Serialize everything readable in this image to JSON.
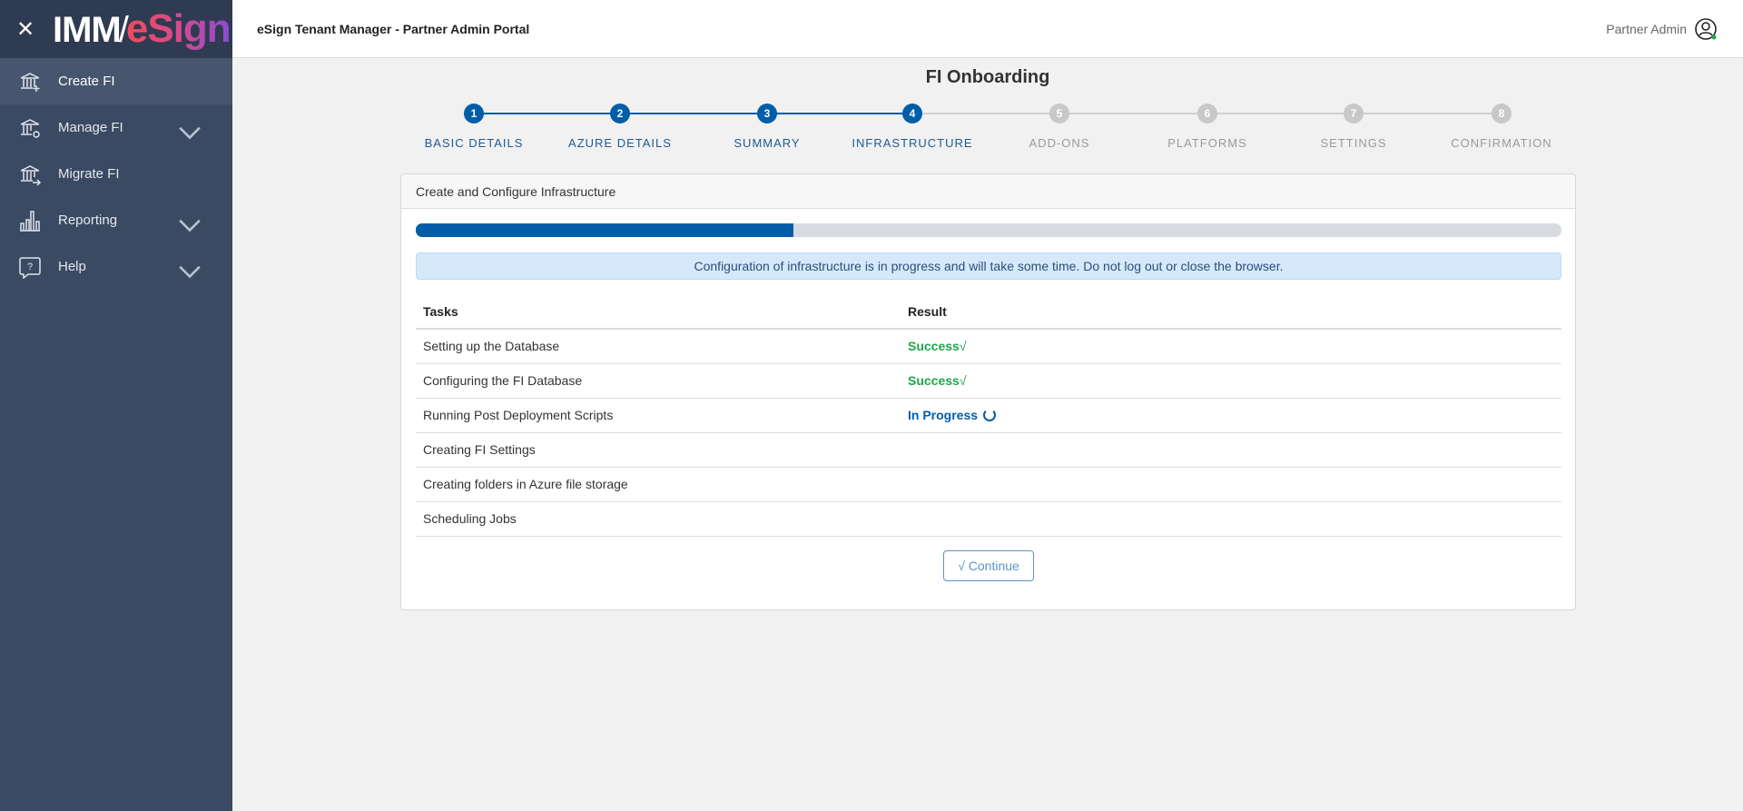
{
  "brand": {
    "close_icon": "close-icon",
    "logo_text": "IMM/eSign"
  },
  "sidebar": {
    "items": [
      {
        "label": "Create FI",
        "icon": "bank-plus-icon",
        "active": true,
        "expandable": false
      },
      {
        "label": "Manage FI",
        "icon": "bank-gear-icon",
        "expandable": true
      },
      {
        "label": "Migrate FI",
        "icon": "bank-arrow-icon",
        "expandable": false
      },
      {
        "label": "Reporting",
        "icon": "bar-chart-icon",
        "expandable": true
      },
      {
        "label": "Help",
        "icon": "help-bubble-icon",
        "expandable": true
      }
    ]
  },
  "header": {
    "title": "eSign Tenant Manager - Partner Admin Portal",
    "user": "Partner Admin"
  },
  "page": {
    "title": "FI Onboarding"
  },
  "steps": [
    {
      "num": "1",
      "label": "BASIC DETAILS",
      "done": true
    },
    {
      "num": "2",
      "label": "AZURE DETAILS",
      "done": true
    },
    {
      "num": "3",
      "label": "SUMMARY",
      "done": true
    },
    {
      "num": "4",
      "label": "INFRASTRUCTURE",
      "done": true
    },
    {
      "num": "5",
      "label": "ADD-ONS",
      "done": false
    },
    {
      "num": "6",
      "label": "PLATFORMS",
      "done": false
    },
    {
      "num": "7",
      "label": "SETTINGS",
      "done": false
    },
    {
      "num": "8",
      "label": "CONFIRMATION",
      "done": false
    }
  ],
  "card": {
    "title": "Create and Configure Infrastructure",
    "progress_percent": 33,
    "alert": "Configuration of infrastructure is in progress and will take some time. Do not log out or close the browser.",
    "columns": [
      "Tasks",
      "Result"
    ],
    "rows": [
      {
        "task": "Setting up the Database",
        "result": "Success",
        "status": "success"
      },
      {
        "task": "Configuring the FI Database",
        "result": "Success",
        "status": "success"
      },
      {
        "task": "Running Post Deployment Scripts",
        "result": "In Progress",
        "status": "progress"
      },
      {
        "task": "Creating FI Settings",
        "result": "",
        "status": ""
      },
      {
        "task": "Creating folders in Azure file storage",
        "result": "",
        "status": ""
      },
      {
        "task": "Scheduling Jobs",
        "result": "",
        "status": ""
      }
    ],
    "continue_label": "Continue"
  },
  "colors": {
    "primary": "#005ea8",
    "success": "#1fa64a",
    "inactive": "#c8c8c8",
    "sidebar": "#3a4a62"
  }
}
